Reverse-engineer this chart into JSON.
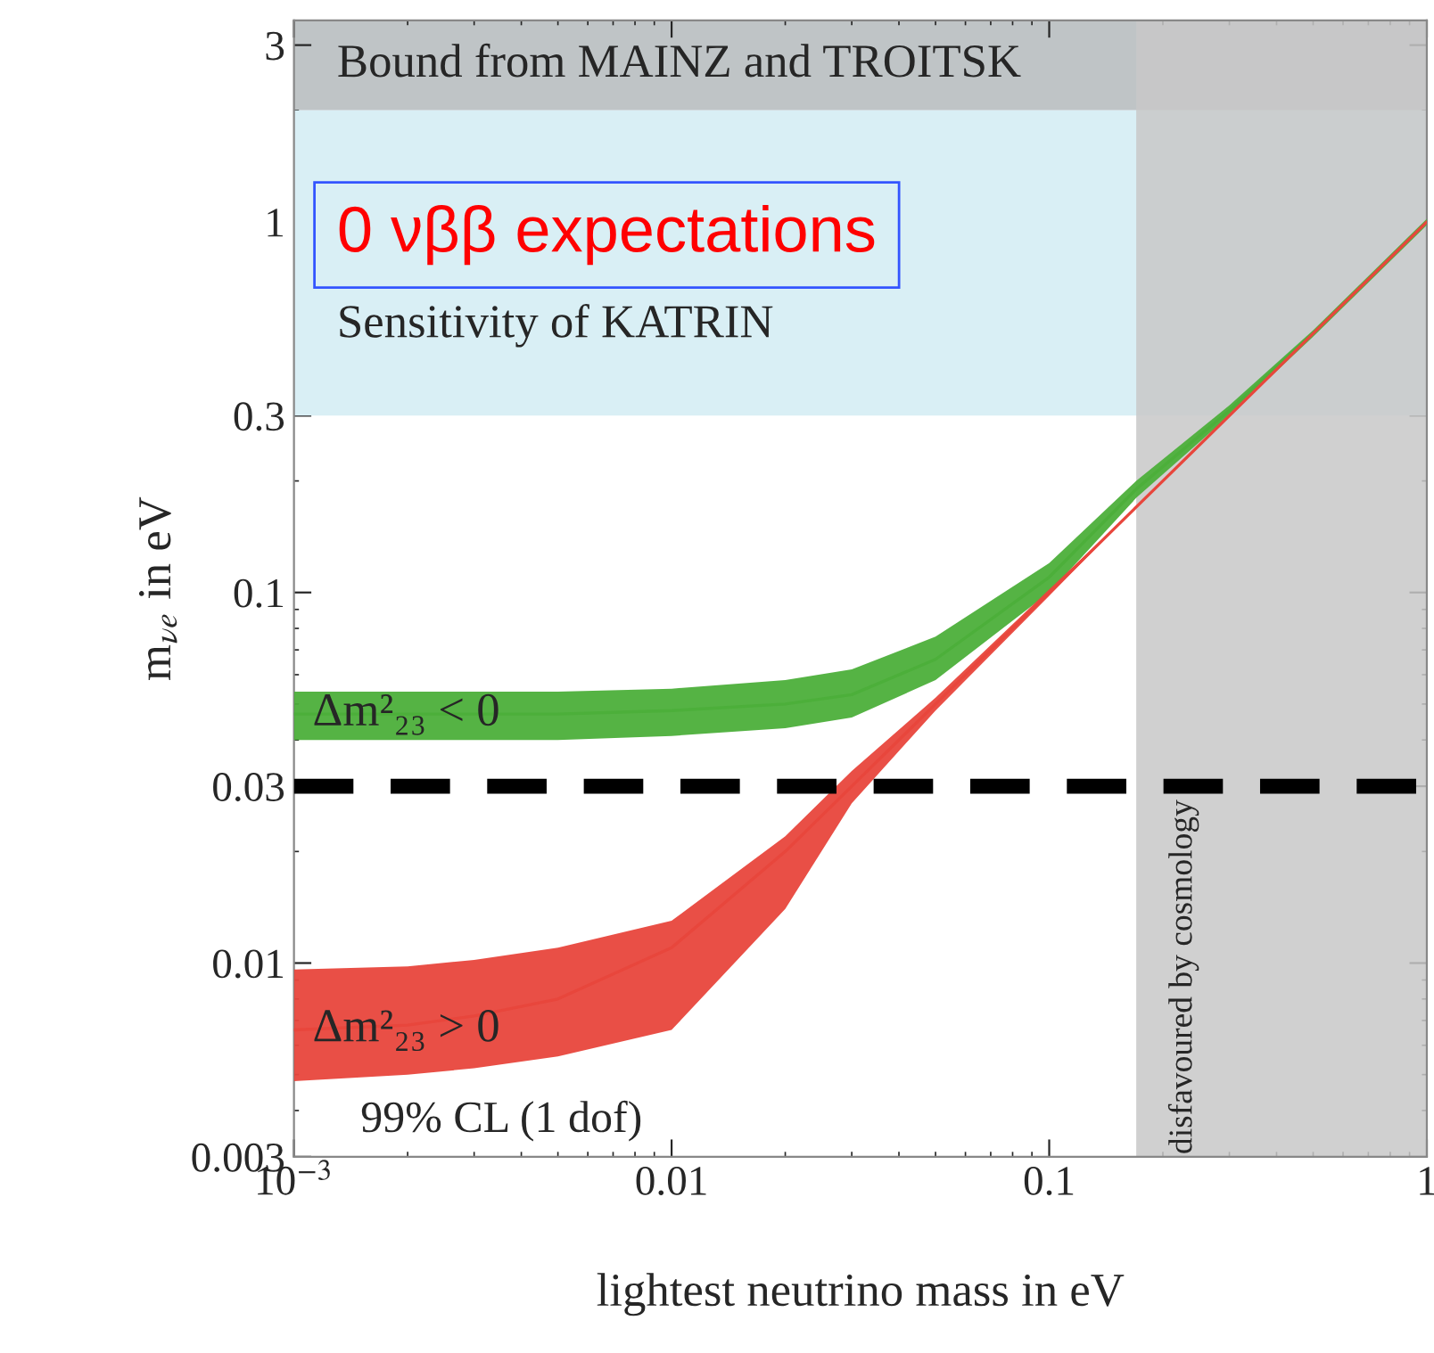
{
  "chart_data": {
    "type": "line",
    "xlabel": "lightest neutrino mass in eV",
    "ylabel": "m$_{νe}$ in eV",
    "log": "xy",
    "grid": false,
    "legend": false,
    "xlim": [
      0.001,
      1
    ],
    "ylim": [
      0.003,
      3.5
    ],
    "xticks": [
      {
        "value": 0.001,
        "label": "10$^{−3}$"
      },
      0.01,
      0.1,
      1
    ],
    "yticks": [
      0.003,
      0.01,
      0.03,
      0.1,
      0.3,
      1,
      3
    ],
    "x": [
      0.001,
      0.002,
      0.003,
      0.005,
      0.01,
      0.02,
      0.03,
      0.05,
      0.1,
      0.17,
      0.3,
      0.5,
      1
    ],
    "series": [
      {
        "name": "Δm²₂₃ < 0",
        "color": "#4caf3a",
        "values": [
          0.047,
          0.047,
          0.047,
          0.047,
          0.048,
          0.05,
          0.053,
          0.066,
          0.11,
          0.19,
          0.31,
          0.5,
          1.0
        ],
        "lower": [
          0.04,
          0.04,
          0.04,
          0.04,
          0.041,
          0.043,
          0.046,
          0.058,
          0.1,
          0.18,
          0.3,
          0.49,
          0.98
        ],
        "upper": [
          0.054,
          0.054,
          0.054,
          0.054,
          0.055,
          0.058,
          0.062,
          0.076,
          0.12,
          0.2,
          0.32,
          0.51,
          1.02
        ]
      },
      {
        "name": "Δm²₂₃ > 0",
        "color": "#e8463c",
        "values": [
          0.0066,
          0.0068,
          0.0072,
          0.008,
          0.011,
          0.02,
          0.03,
          0.05,
          0.1,
          0.17,
          0.3,
          0.5,
          1.0
        ],
        "lower": [
          0.0048,
          0.005,
          0.0052,
          0.0056,
          0.0066,
          0.014,
          0.027,
          0.048,
          0.098,
          0.17,
          0.3,
          0.5,
          1.0
        ],
        "upper": [
          0.0096,
          0.0098,
          0.0102,
          0.011,
          0.013,
          0.022,
          0.033,
          0.052,
          0.102,
          0.17,
          0.3,
          0.5,
          1.0
        ]
      }
    ],
    "bands": [
      {
        "axis": "y",
        "from": 2,
        "to": 3.5,
        "label": "Bound from MAINZ and TROITSK",
        "color": "#bfc4c6"
      },
      {
        "axis": "y",
        "from": 0.3,
        "to": 2,
        "label": "Sensitivity of KATRIN",
        "color": "#d9eff5"
      },
      {
        "axis": "x",
        "from": 0.17,
        "to": 1,
        "label": "disfavoured by cosmology",
        "color": "#c8c8c8"
      }
    ],
    "ref_lines": [
      {
        "axis": "y",
        "value": 0.03,
        "color": "#000000",
        "line_style": "dashed"
      }
    ],
    "annotations": [
      "0 νββ expectations",
      "99% CL (1 dof)"
    ]
  }
}
